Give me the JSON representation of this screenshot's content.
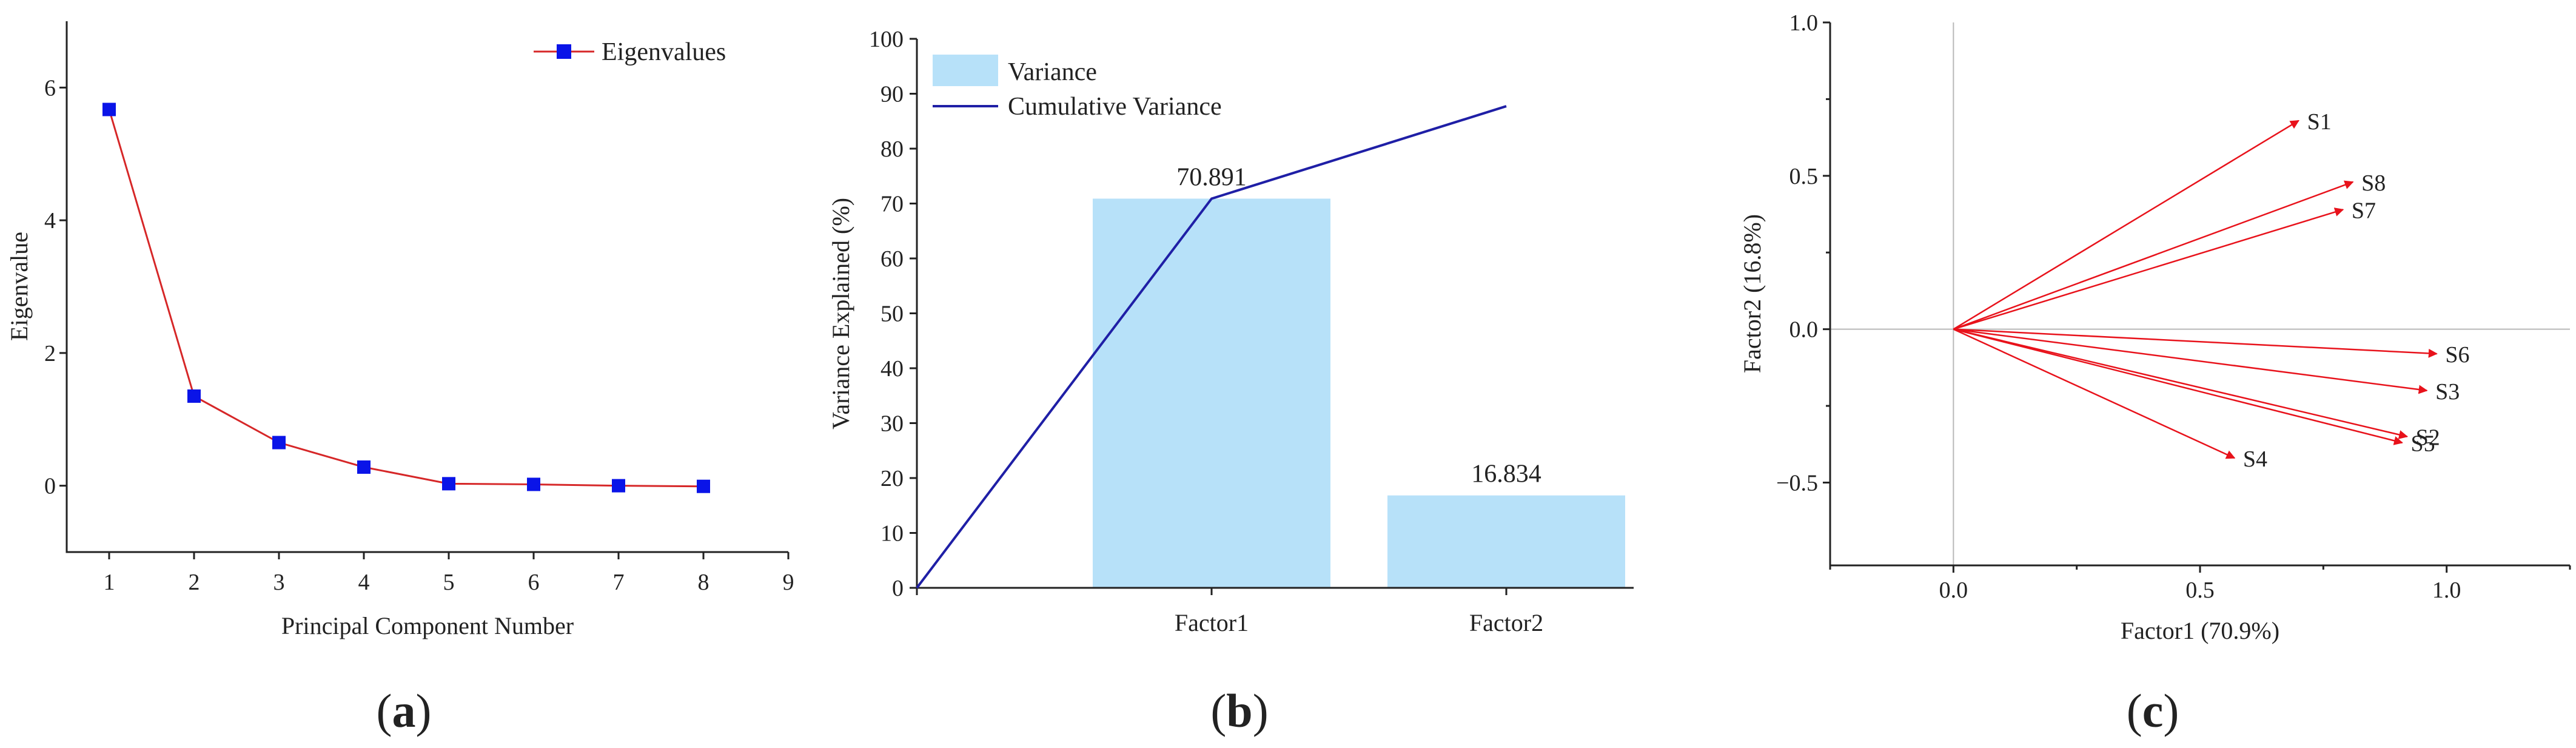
{
  "colors": {
    "scree_line": "#d62728",
    "scree_marker": "#0a14e8",
    "bar_fill": "#b7e1f9",
    "cum_line": "#1f1fa6",
    "vector": "#e8121b",
    "zero_line": "#b8b8b8"
  },
  "panels": {
    "a": {
      "label_open": "(",
      "label_letter": "a",
      "label_close": ")"
    },
    "b": {
      "label_open": "(",
      "label_letter": "b",
      "label_close": ")"
    },
    "c": {
      "label_open": "(",
      "label_letter": "c",
      "label_close": ")"
    }
  },
  "chart_data": [
    {
      "id": "a",
      "type": "line",
      "xlabel": "Principal Component Number",
      "ylabel": "Eigenvalue",
      "xlim": [
        0.5,
        9
      ],
      "ylim": [
        -1,
        7
      ],
      "xticks": [
        "1",
        "2",
        "3",
        "4",
        "5",
        "6",
        "7",
        "8",
        "9"
      ],
      "yticks": [
        "0",
        "2",
        "4",
        "6"
      ],
      "legend": {
        "position": "top-right",
        "entries": [
          "Eigenvalues"
        ]
      },
      "series": [
        {
          "name": "Eigenvalues",
          "x": [
            1,
            2,
            3,
            4,
            5,
            6,
            7,
            8
          ],
          "values": [
            5.67,
            1.35,
            0.65,
            0.28,
            0.03,
            0.02,
            0.0,
            -0.01
          ]
        }
      ]
    },
    {
      "id": "b",
      "type": "bar",
      "xlabel": "",
      "ylabel": "Variance Explained (%)",
      "categories": [
        "Factor1",
        "Factor2"
      ],
      "ylim": [
        0,
        100
      ],
      "yticks": [
        "0",
        "10",
        "20",
        "30",
        "40",
        "50",
        "60",
        "70",
        "80",
        "90",
        "100"
      ],
      "legend": {
        "position": "top-left",
        "entries": [
          "Variance",
          "Cumulative Variance"
        ]
      },
      "series": [
        {
          "name": "Variance",
          "values": [
            70.891,
            16.834
          ]
        },
        {
          "name": "Cumulative Variance",
          "x": [
            0,
            1,
            2
          ],
          "values": [
            0,
            70.891,
            87.725
          ]
        }
      ],
      "data_labels": [
        "70.891",
        "16.834"
      ]
    },
    {
      "id": "c",
      "type": "scatter",
      "xlabel": "Factor1 (70.9%)",
      "ylabel": "Factor2 (16.8%)",
      "xlim": [
        -0.25,
        1.25
      ],
      "ylim": [
        -0.77,
        1.0
      ],
      "xticks": [
        "0.0",
        "0.5",
        "1.0"
      ],
      "yticks": [
        "−0.5",
        "0.0",
        "0.5",
        "1.0"
      ],
      "vectors": [
        {
          "name": "S1",
          "x": 0.7,
          "y": 0.68
        },
        {
          "name": "S8",
          "x": 0.81,
          "y": 0.48
        },
        {
          "name": "S7",
          "x": 0.79,
          "y": 0.39
        },
        {
          "name": "S6",
          "x": 0.98,
          "y": -0.08
        },
        {
          "name": "S3",
          "x": 0.96,
          "y": -0.2
        },
        {
          "name": "S2",
          "x": 0.92,
          "y": -0.35
        },
        {
          "name": "S5",
          "x": 0.91,
          "y": -0.37
        },
        {
          "name": "S4",
          "x": 0.57,
          "y": -0.42
        }
      ]
    }
  ]
}
